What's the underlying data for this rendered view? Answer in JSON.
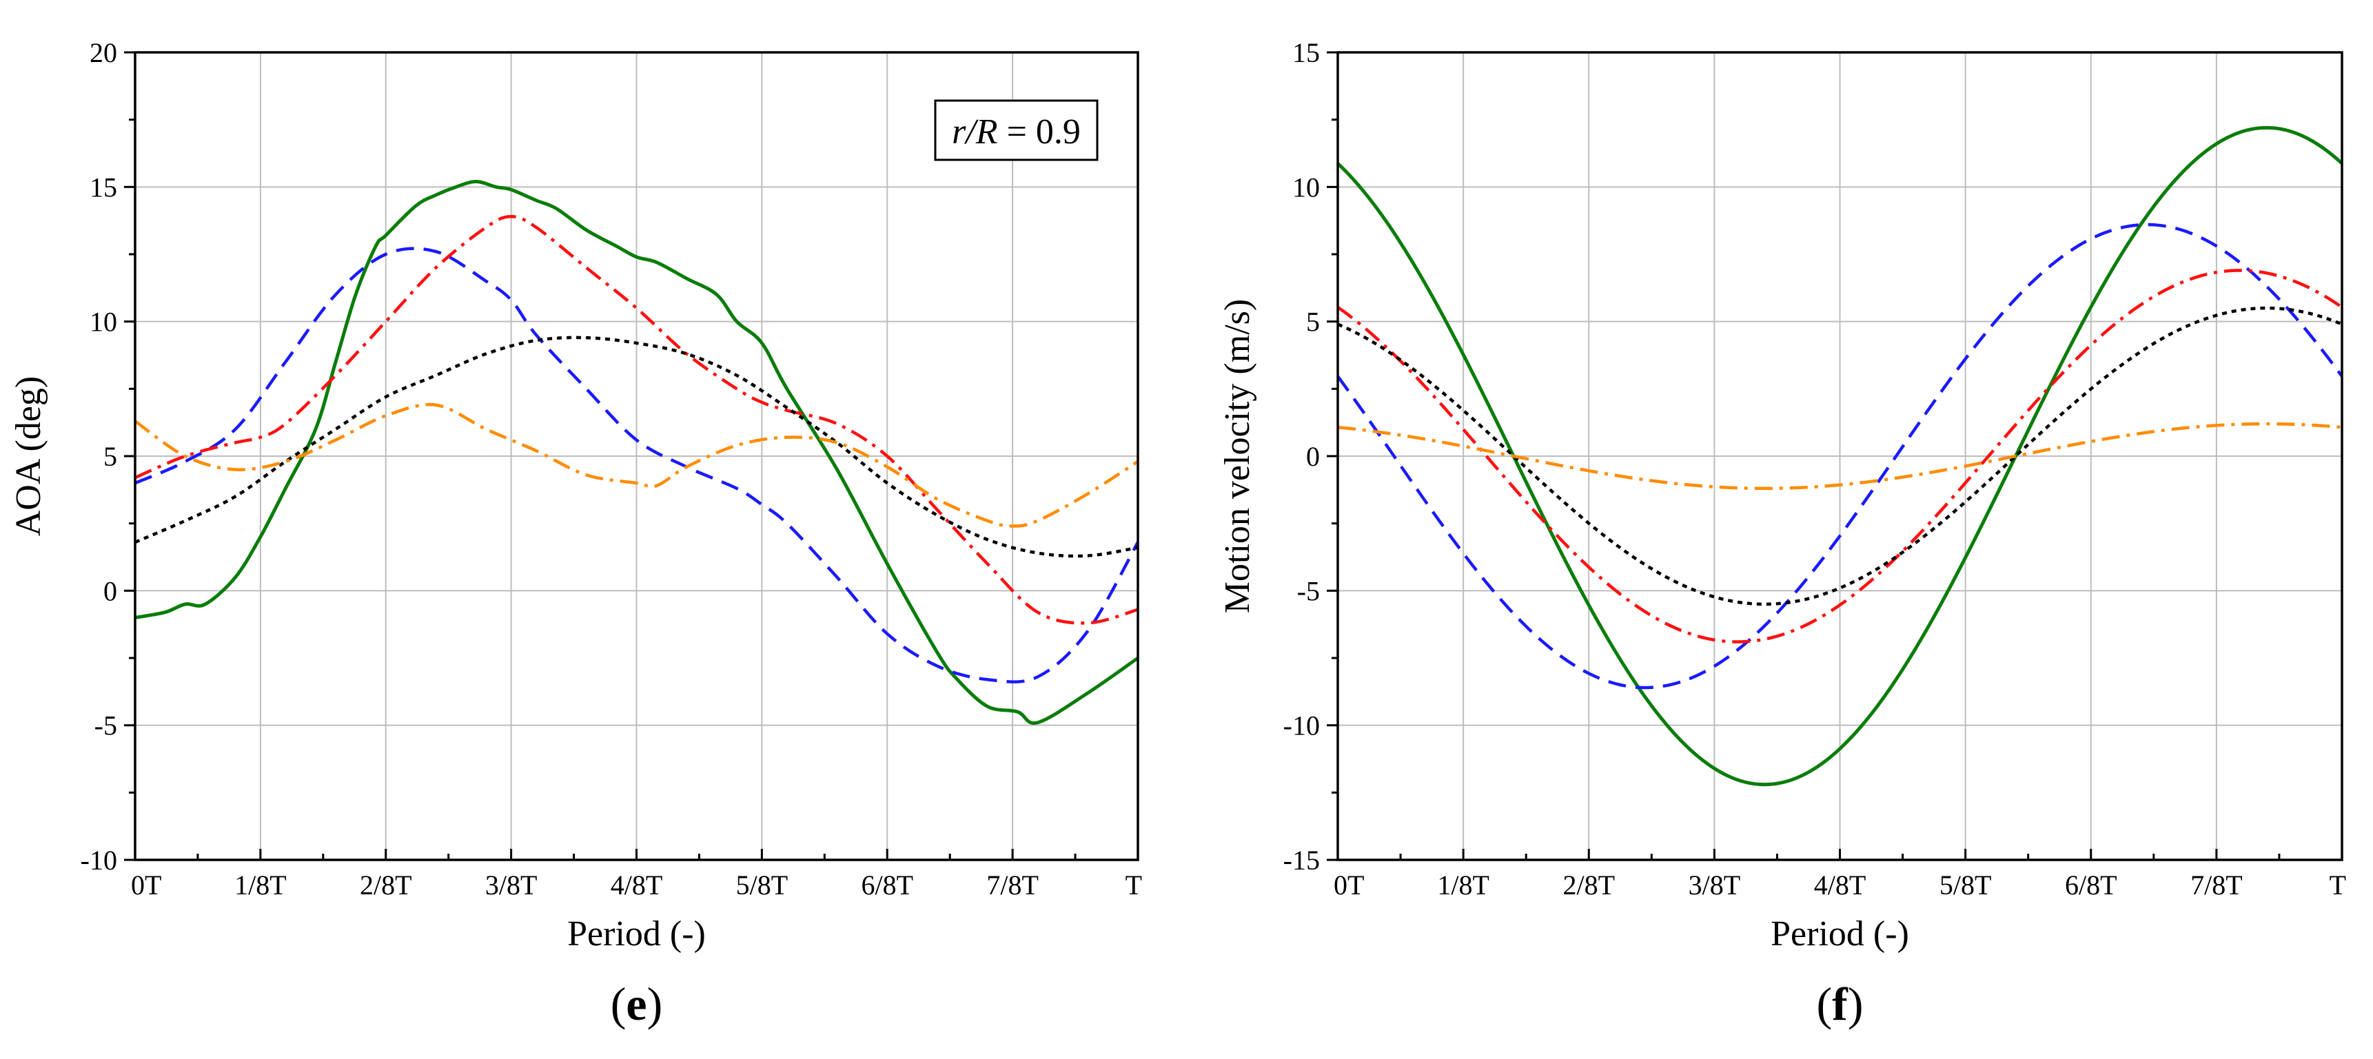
{
  "colors": {
    "green": "#0a7d0a",
    "blue": "#1a1aff",
    "red": "#ff1010",
    "black": "#000000",
    "orange": "#ff8c00",
    "grid": "#bdbdbd"
  },
  "chart_data": [
    {
      "type": "line",
      "panel_label": "e",
      "title": "",
      "xlabel": "Period (-)",
      "ylabel": "AOA (deg)",
      "annotation": {
        "italic": "r/R",
        "rest": " = 0.9"
      },
      "x_tick_labels": [
        "0T",
        "1/8T",
        "2/8T",
        "3/8T",
        "4/8T",
        "5/8T",
        "6/8T",
        "7/8T",
        "T"
      ],
      "xlim": [
        0,
        1
      ],
      "ylim": [
        -10,
        20
      ],
      "y_ticks": [
        -10,
        -5,
        0,
        5,
        10,
        15,
        20
      ],
      "y_tick_labels": [
        "-10",
        "-5",
        "0",
        "5",
        "10",
        "15",
        "20"
      ],
      "grid": true,
      "legend": "none",
      "series": [
        {
          "color": "green",
          "dash": "solid",
          "x": [
            0,
            0.03,
            0.05,
            0.07,
            0.1,
            0.125,
            0.15,
            0.18,
            0.2,
            0.22,
            0.24,
            0.25,
            0.28,
            0.3,
            0.32,
            0.34,
            0.36,
            0.375,
            0.4,
            0.42,
            0.45,
            0.48,
            0.5,
            0.52,
            0.55,
            0.58,
            0.6,
            0.625,
            0.65,
            0.7,
            0.75,
            0.8,
            0.82,
            0.85,
            0.88,
            0.9,
            0.95,
            1.0
          ],
          "y": [
            -1.0,
            -0.8,
            -0.5,
            -0.5,
            0.5,
            2.0,
            3.8,
            6.0,
            8.5,
            11.0,
            12.8,
            13.2,
            14.3,
            14.7,
            15.0,
            15.2,
            15.0,
            14.9,
            14.5,
            14.2,
            13.4,
            12.8,
            12.4,
            12.2,
            11.6,
            11.0,
            10.0,
            9.2,
            7.5,
            4.5,
            1.0,
            -2.3,
            -3.3,
            -4.3,
            -4.5,
            -4.9,
            -3.8,
            -2.5
          ]
        },
        {
          "color": "blue",
          "dash": "dashed",
          "x": [
            0,
            0.05,
            0.1,
            0.15,
            0.2,
            0.25,
            0.3,
            0.35,
            0.375,
            0.4,
            0.45,
            0.5,
            0.55,
            0.6,
            0.625,
            0.65,
            0.7,
            0.75,
            0.8,
            0.85,
            0.9,
            0.95,
            1.0
          ],
          "y": [
            4.0,
            4.8,
            6.0,
            8.5,
            11.0,
            12.5,
            12.6,
            11.5,
            10.8,
            9.5,
            7.5,
            5.6,
            4.6,
            3.8,
            3.2,
            2.5,
            0.5,
            -1.6,
            -2.8,
            -3.3,
            -3.2,
            -1.5,
            1.8
          ]
        },
        {
          "color": "red",
          "dash": "dashdot",
          "x": [
            0,
            0.05,
            0.1,
            0.125,
            0.15,
            0.2,
            0.25,
            0.3,
            0.35,
            0.375,
            0.4,
            0.45,
            0.5,
            0.55,
            0.6,
            0.625,
            0.65,
            0.7,
            0.75,
            0.8,
            0.85,
            0.9,
            0.95,
            1.0
          ],
          "y": [
            4.2,
            5.0,
            5.5,
            5.7,
            6.2,
            8.0,
            10.0,
            12.0,
            13.5,
            13.9,
            13.5,
            12.0,
            10.5,
            8.8,
            7.5,
            7.0,
            6.7,
            6.2,
            5.0,
            3.0,
            1.0,
            -0.8,
            -1.2,
            -0.7
          ]
        },
        {
          "color": "black",
          "dash": "dotted",
          "x": [
            0,
            0.05,
            0.1,
            0.15,
            0.2,
            0.25,
            0.3,
            0.35,
            0.4,
            0.45,
            0.5,
            0.55,
            0.6,
            0.65,
            0.7,
            0.75,
            0.8,
            0.85,
            0.9,
            0.95,
            1.0
          ],
          "y": [
            1.8,
            2.6,
            3.5,
            4.8,
            6.0,
            7.2,
            8.0,
            8.8,
            9.3,
            9.4,
            9.2,
            8.8,
            8.0,
            6.8,
            5.5,
            4.0,
            2.8,
            1.9,
            1.4,
            1.3,
            1.6
          ]
        },
        {
          "color": "orange",
          "dash": "dashdot",
          "x": [
            0,
            0.05,
            0.1,
            0.15,
            0.2,
            0.25,
            0.3,
            0.35,
            0.4,
            0.45,
            0.5,
            0.52,
            0.55,
            0.6,
            0.65,
            0.7,
            0.75,
            0.8,
            0.85,
            0.875,
            0.9,
            0.95,
            1.0
          ],
          "y": [
            6.3,
            5.0,
            4.5,
            4.8,
            5.6,
            6.5,
            6.9,
            6.0,
            5.2,
            4.3,
            4.0,
            3.9,
            4.6,
            5.4,
            5.7,
            5.5,
            4.6,
            3.4,
            2.6,
            2.4,
            2.6,
            3.6,
            4.8
          ]
        }
      ]
    },
    {
      "type": "line",
      "panel_label": "f",
      "title": "",
      "xlabel": "Period (-)",
      "ylabel": "Motion velocity (m/s)",
      "x_tick_labels": [
        "0T",
        "1/8T",
        "2/8T",
        "3/8T",
        "4/8T",
        "5/8T",
        "6/8T",
        "7/8T",
        "T"
      ],
      "xlim": [
        0,
        1
      ],
      "ylim": [
        -15,
        15
      ],
      "y_ticks": [
        -15,
        -10,
        -5,
        0,
        5,
        10,
        15
      ],
      "y_tick_labels": [
        "-15",
        "-10",
        "-5",
        "0",
        "5",
        "10",
        "15"
      ],
      "grid": true,
      "legend": "none",
      "series": [
        {
          "color": "green",
          "dash": "solid",
          "sine": {
            "amplitude": 12.2,
            "zero_crossing": 0.175,
            "peak_at": 0.925
          }
        },
        {
          "color": "blue",
          "dash": "dashed",
          "sine": {
            "amplitude": 8.6,
            "zero_crossing": 0.056,
            "peak_at": 0.806
          }
        },
        {
          "color": "red",
          "dash": "dashdot",
          "sine": {
            "amplitude": 6.9,
            "zero_crossing": 0.148,
            "peak_at": 0.898
          }
        },
        {
          "color": "black",
          "dash": "dotted",
          "sine": {
            "amplitude": 5.5,
            "zero_crossing": 0.175,
            "peak_at": 0.925
          }
        },
        {
          "color": "orange",
          "dash": "dashdot",
          "sine": {
            "amplitude": 1.2,
            "zero_crossing": 0.175,
            "peak_at": 0.925
          }
        }
      ]
    }
  ]
}
